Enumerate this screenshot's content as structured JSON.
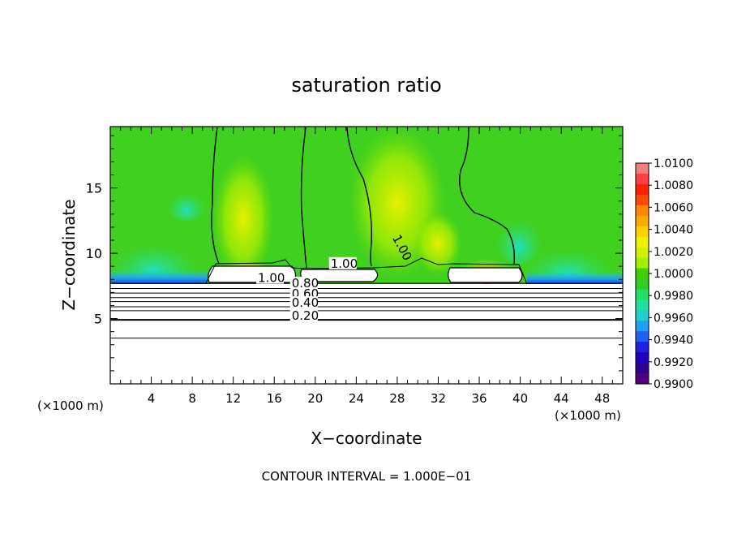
{
  "chart_data": {
    "type": "heatmap",
    "title": "saturation ratio",
    "xlabel": "X−coordinate",
    "ylabel": "Z−coordinate",
    "x_unit_left": "(×1000 m)",
    "x_unit_right": "(×1000 m)",
    "xlim": [
      0,
      50
    ],
    "ylim": [
      0,
      19.7
    ],
    "x_ticks": [
      4,
      8,
      12,
      16,
      20,
      24,
      28,
      32,
      36,
      40,
      44,
      48
    ],
    "y_ticks": [
      5,
      10,
      15
    ],
    "footer": "CONTOUR INTERVAL = 1.000E−01",
    "colorbar": {
      "labels": [
        "1.0100",
        "1.0080",
        "1.0060",
        "1.0040",
        "1.0020",
        "1.0000",
        "0.9980",
        "0.9960",
        "0.9940",
        "0.9920",
        "0.9900"
      ],
      "levels": [
        1.01,
        1.009,
        1.008,
        1.007,
        1.006,
        1.005,
        1.004,
        1.003,
        1.002,
        1.001,
        1.0,
        0.999,
        0.998,
        0.997,
        0.996,
        0.995,
        0.994,
        0.993,
        0.992,
        0.991,
        0.99
      ],
      "colors": [
        "#f08080",
        "#ff4040",
        "#ff2000",
        "#ff4800",
        "#ff8800",
        "#ffa800",
        "#ffd000",
        "#f0f000",
        "#d0f000",
        "#a0f000",
        "#40d000",
        "#30d020",
        "#20e060",
        "#20e0a0",
        "#20d0d0",
        "#20a0f0",
        "#2060f0",
        "#2020e0",
        "#2000c0",
        "#300090",
        "#500080"
      ]
    },
    "contour_labels": [
      {
        "text": "1.00",
        "x": 27.5,
        "y": 11.2
      },
      {
        "text": "1.00",
        "x": 21.5,
        "y": 8.9
      },
      {
        "text": "1.00",
        "x": 14.4,
        "y": 7.8
      },
      {
        "text": "0.80",
        "x": 17.7,
        "y": 7.4
      },
      {
        "text": "0.60",
        "x": 17.7,
        "y": 6.6
      },
      {
        "text": "0.40",
        "x": 17.7,
        "y": 5.9
      },
      {
        "text": "0.20",
        "x": 17.7,
        "y": 4.9
      }
    ]
  }
}
